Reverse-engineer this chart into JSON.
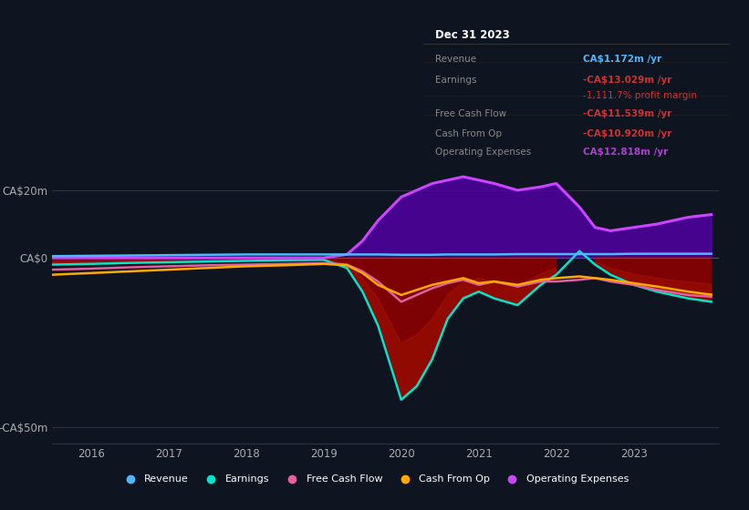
{
  "bg_color": "#0e1420",
  "chart_bg": "#0e1420",
  "info_box": {
    "date": "Dec 31 2023",
    "rows": [
      {
        "label": "Revenue",
        "value": "CA$1.172m /yr",
        "value_color": "#4db8ff"
      },
      {
        "label": "Earnings",
        "value": "-CA$13.029m /yr",
        "value_color": "#cc3333"
      },
      {
        "label": "",
        "value": "-1,111.7% profit margin",
        "value_color": "#cc3333"
      },
      {
        "label": "Free Cash Flow",
        "value": "-CA$11.539m /yr",
        "value_color": "#cc3333"
      },
      {
        "label": "Cash From Op",
        "value": "-CA$10.920m /yr",
        "value_color": "#cc3333"
      },
      {
        "label": "Operating Expenses",
        "value": "CA$12.818m /yr",
        "value_color": "#aa44cc"
      }
    ]
  },
  "x_years": [
    2015.5,
    2016.0,
    2016.5,
    2017.0,
    2017.5,
    2018.0,
    2018.5,
    2019.0,
    2019.3,
    2019.5,
    2019.7,
    2020.0,
    2020.2,
    2020.4,
    2020.6,
    2020.8,
    2021.0,
    2021.2,
    2021.5,
    2021.8,
    2022.0,
    2022.3,
    2022.5,
    2022.7,
    2023.0,
    2023.3,
    2023.7,
    2024.0
  ],
  "revenue": [
    0.5,
    0.6,
    0.7,
    0.8,
    0.9,
    1.0,
    1.0,
    1.0,
    1.0,
    1.0,
    1.0,
    0.9,
    0.9,
    0.9,
    1.0,
    1.0,
    1.0,
    1.0,
    1.1,
    1.1,
    1.1,
    1.1,
    1.1,
    1.1,
    1.2,
    1.2,
    1.2,
    1.2
  ],
  "earnings": [
    -2.0,
    -1.8,
    -1.5,
    -1.3,
    -1.1,
    -0.9,
    -0.7,
    -0.6,
    -3.0,
    -10.0,
    -20.0,
    -42.0,
    -38.0,
    -30.0,
    -18.0,
    -12.0,
    -10.0,
    -12.0,
    -14.0,
    -8.0,
    -5.0,
    2.0,
    -2.0,
    -5.0,
    -8.0,
    -10.0,
    -12.0,
    -13.0
  ],
  "free_cash_flow": [
    -3.5,
    -3.2,
    -2.8,
    -2.5,
    -2.2,
    -2.0,
    -1.8,
    -1.6,
    -2.0,
    -4.0,
    -7.0,
    -13.0,
    -11.0,
    -9.0,
    -7.5,
    -6.5,
    -8.0,
    -7.0,
    -8.5,
    -7.0,
    -7.0,
    -6.5,
    -6.0,
    -7.0,
    -8.0,
    -9.5,
    -11.0,
    -11.5
  ],
  "cash_from_op": [
    -5.0,
    -4.5,
    -4.0,
    -3.5,
    -3.0,
    -2.5,
    -2.2,
    -1.8,
    -2.2,
    -4.5,
    -8.0,
    -11.0,
    -9.5,
    -8.0,
    -7.0,
    -6.0,
    -7.5,
    -7.0,
    -8.0,
    -6.5,
    -6.0,
    -5.5,
    -6.0,
    -6.5,
    -7.5,
    -8.5,
    -10.0,
    -10.9
  ],
  "operating_expenses": [
    0.0,
    0.0,
    0.0,
    0.0,
    0.0,
    0.0,
    0.0,
    0.0,
    1.0,
    5.0,
    11.0,
    18.0,
    20.0,
    22.0,
    23.0,
    24.0,
    23.0,
    22.0,
    20.0,
    21.0,
    22.0,
    15.0,
    9.0,
    8.0,
    9.0,
    10.0,
    12.0,
    12.8
  ],
  "xlim": [
    2015.5,
    2024.1
  ],
  "ylim": [
    -55,
    28
  ],
  "yticks": [
    20,
    0,
    -50
  ],
  "ytick_labels": [
    "CA$20m",
    "CA$0",
    "-CA$50m"
  ],
  "xtick_years": [
    2016,
    2017,
    2018,
    2019,
    2020,
    2021,
    2022,
    2023
  ],
  "colors": {
    "revenue": "#4db8ff",
    "earnings": "#00e5cc",
    "free_cash_flow": "#e060a0",
    "cash_from_op": "#ffaa00",
    "operating_expenses": "#cc44ff"
  },
  "legend_items": [
    {
      "label": "Revenue",
      "color": "#4db8ff"
    },
    {
      "label": "Earnings",
      "color": "#00e5cc"
    },
    {
      "label": "Free Cash Flow",
      "color": "#e060a0"
    },
    {
      "label": "Cash From Op",
      "color": "#ffaa00"
    },
    {
      "label": "Operating Expenses",
      "color": "#cc44ff"
    }
  ]
}
